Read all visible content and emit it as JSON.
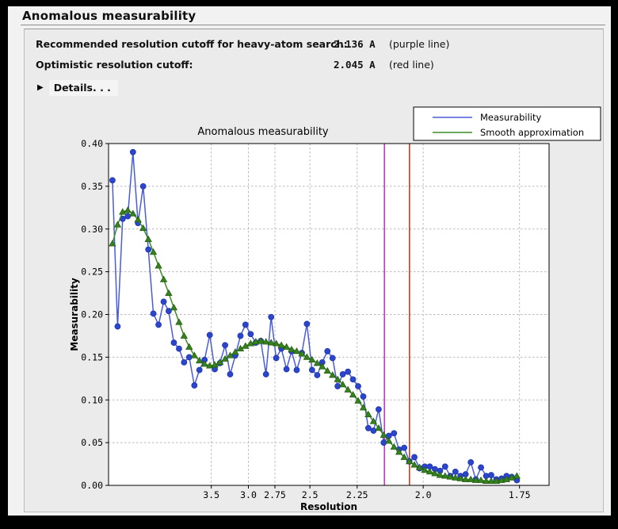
{
  "window": {
    "title": "Anomalous measurability"
  },
  "summary": {
    "rows": [
      {
        "label": "Recommended resolution cutoff for heavy-atom search:",
        "value": "2.136 A",
        "note": "(purple line)"
      },
      {
        "label": "Optimistic resolution cutoff:",
        "value": "2.045 A",
        "note": "(red line)"
      }
    ],
    "disclosure_triangle": "▶",
    "details_label": "Details. . ."
  },
  "chart_data": {
    "type": "line",
    "title": "Anomalous measurability",
    "xlabel": "Resolution",
    "ylabel": "Measurability",
    "x_scale_note": "x axis is linear in 1/d^2 (reciprocal resolution squared), resolution decreases left to right",
    "xlim_s": [
      0.0,
      0.35
    ],
    "ylim": [
      0.0,
      0.4
    ],
    "grid": true,
    "plot_bg": "#ffffff",
    "fig_bg": "#ebebeb",
    "grid_color": "#b9b9b9",
    "x_ticks": [
      {
        "label": "3.5",
        "s": 0.0816
      },
      {
        "label": "3.0",
        "s": 0.1111
      },
      {
        "label": "2.75",
        "s": 0.1322
      },
      {
        "label": "2.5",
        "s": 0.16
      },
      {
        "label": "2.25",
        "s": 0.1975
      },
      {
        "label": "2.0",
        "s": 0.25
      },
      {
        "label": "1.75",
        "s": 0.3265
      }
    ],
    "y_ticks": [
      {
        "label": "0.00",
        "v": 0.0
      },
      {
        "label": "0.05",
        "v": 0.05
      },
      {
        "label": "0.10",
        "v": 0.1
      },
      {
        "label": "0.15",
        "v": 0.15
      },
      {
        "label": "0.20",
        "v": 0.2
      },
      {
        "label": "0.25",
        "v": 0.25
      },
      {
        "label": "0.30",
        "v": 0.3
      },
      {
        "label": "0.35",
        "v": 0.35
      },
      {
        "label": "0.40",
        "v": 0.4
      }
    ],
    "x_s": [
      0.0031,
      0.0072,
      0.0112,
      0.0153,
      0.0194,
      0.0234,
      0.0275,
      0.0316,
      0.0356,
      0.0397,
      0.0438,
      0.0478,
      0.0519,
      0.056,
      0.06,
      0.0641,
      0.0682,
      0.0722,
      0.0763,
      0.0804,
      0.0844,
      0.0885,
      0.0926,
      0.0966,
      0.1007,
      0.1048,
      0.1088,
      0.1129,
      0.117,
      0.121,
      0.1251,
      0.1292,
      0.1332,
      0.1373,
      0.1414,
      0.1454,
      0.1495,
      0.1536,
      0.1576,
      0.1617,
      0.1658,
      0.1698,
      0.1739,
      0.178,
      0.182,
      0.1861,
      0.1902,
      0.1942,
      0.1983,
      0.2024,
      0.2064,
      0.2105,
      0.2146,
      0.2186,
      0.2227,
      0.2268,
      0.2308,
      0.2349,
      0.239,
      0.243,
      0.2471,
      0.2512,
      0.2552,
      0.2593,
      0.2634,
      0.2674,
      0.2715,
      0.2756,
      0.2796,
      0.2837,
      0.2878,
      0.2918,
      0.2959,
      0.3,
      0.304,
      0.3081,
      0.3122,
      0.3162,
      0.3203,
      0.3244
    ],
    "series": [
      {
        "name": "Measurability",
        "marker": "circle",
        "line_color": "#4a5cd8",
        "marker_color": "#2b45cf",
        "marker_edge": "#1f36a8",
        "values": [
          0.357,
          0.186,
          0.312,
          0.315,
          0.39,
          0.307,
          0.35,
          0.276,
          0.201,
          0.188,
          0.215,
          0.204,
          0.167,
          0.16,
          0.144,
          0.15,
          0.117,
          0.135,
          0.147,
          0.176,
          0.136,
          0.143,
          0.164,
          0.13,
          0.152,
          0.175,
          0.188,
          0.177,
          0.167,
          0.169,
          0.13,
          0.197,
          0.149,
          0.16,
          0.136,
          0.157,
          0.135,
          0.155,
          0.189,
          0.135,
          0.129,
          0.144,
          0.157,
          0.149,
          0.116,
          0.13,
          0.133,
          0.124,
          0.116,
          0.104,
          0.067,
          0.064,
          0.089,
          0.05,
          0.058,
          0.061,
          0.042,
          0.044,
          0.028,
          0.033,
          0.02,
          0.022,
          0.022,
          0.019,
          0.017,
          0.022,
          0.011,
          0.016,
          0.011,
          0.013,
          0.027,
          0.007,
          0.021,
          0.011,
          0.012,
          0.007,
          0.008,
          0.011,
          0.01,
          0.006
        ]
      },
      {
        "name": "Smooth approximation",
        "marker": "triangle",
        "line_color": "#3c8b26",
        "marker_color": "#35821e",
        "marker_edge": "#245f12",
        "values": [
          0.283,
          0.305,
          0.32,
          0.322,
          0.318,
          0.311,
          0.301,
          0.288,
          0.273,
          0.257,
          0.241,
          0.225,
          0.208,
          0.191,
          0.175,
          0.162,
          0.152,
          0.146,
          0.142,
          0.14,
          0.141,
          0.144,
          0.148,
          0.152,
          0.156,
          0.16,
          0.163,
          0.166,
          0.168,
          0.169,
          0.168,
          0.167,
          0.166,
          0.164,
          0.162,
          0.159,
          0.157,
          0.154,
          0.15,
          0.147,
          0.143,
          0.139,
          0.134,
          0.129,
          0.124,
          0.118,
          0.112,
          0.106,
          0.099,
          0.091,
          0.083,
          0.075,
          0.067,
          0.059,
          0.052,
          0.045,
          0.039,
          0.033,
          0.028,
          0.024,
          0.021,
          0.018,
          0.016,
          0.014,
          0.012,
          0.011,
          0.01,
          0.009,
          0.008,
          0.007,
          0.007,
          0.006,
          0.006,
          0.005,
          0.005,
          0.005,
          0.006,
          0.007,
          0.009,
          0.011
        ]
      }
    ],
    "vlines": [
      {
        "name": "recommended-cutoff",
        "s": 0.2192,
        "color": "#bc3fbc",
        "resolution": "2.136 A"
      },
      {
        "name": "optimistic-cutoff",
        "s": 0.2391,
        "color": "#d23b15",
        "resolution": "2.045 A"
      }
    ],
    "legend": {
      "position": "top-right",
      "entries": [
        "Measurability",
        "Smooth approximation"
      ]
    }
  }
}
